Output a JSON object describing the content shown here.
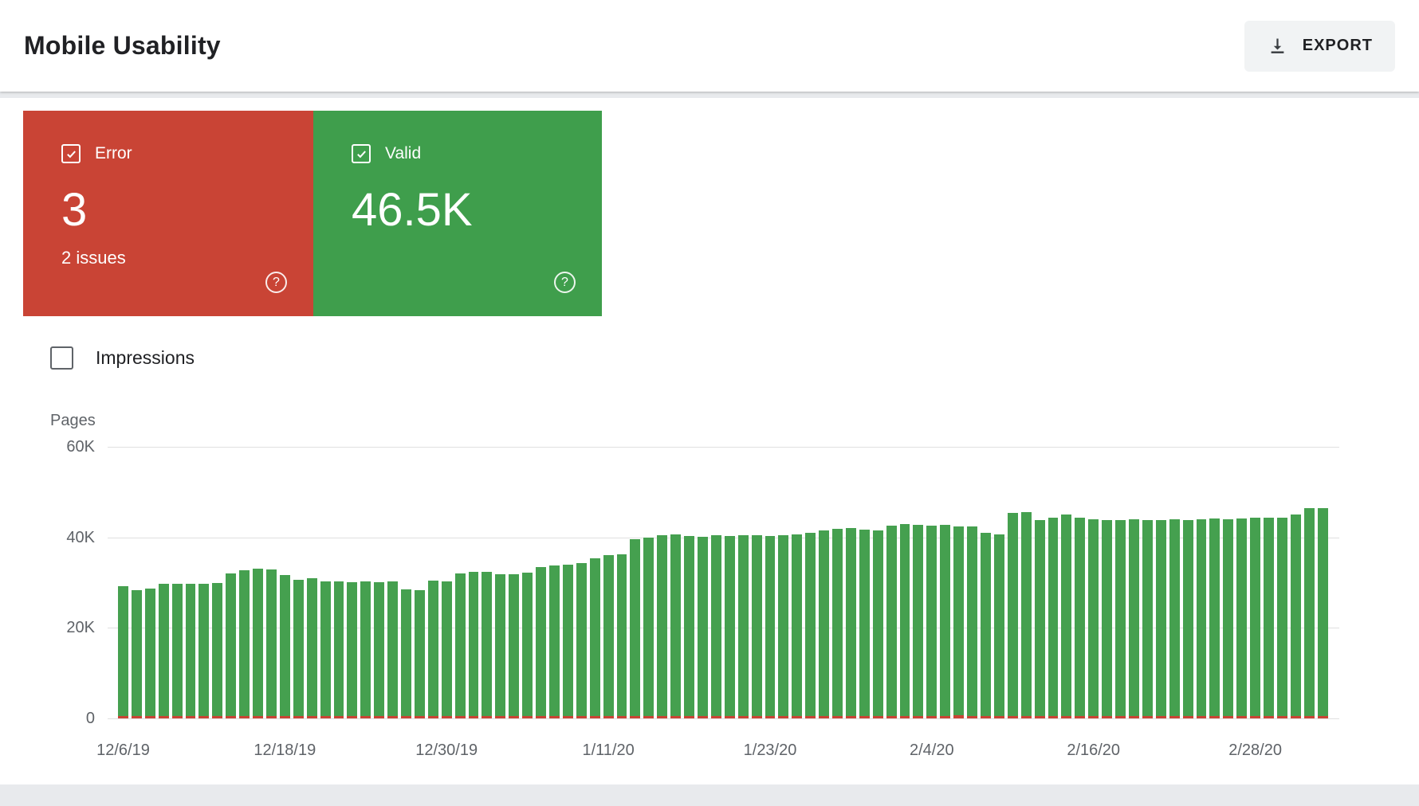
{
  "header": {
    "title": "Mobile Usability",
    "export_label": "EXPORT"
  },
  "summary": {
    "error": {
      "label": "Error",
      "count": "3",
      "subtext": "2 issues"
    },
    "valid": {
      "label": "Valid",
      "count": "46.5K"
    }
  },
  "controls": {
    "impressions_label": "Impressions"
  },
  "icons": {
    "help": "?"
  },
  "colors": {
    "error_tile": "#c94435",
    "valid_tile": "#3f9e4c",
    "bar_green": "#45a04f",
    "bar_red": "#c94435",
    "grid_line": "#e0e0e0",
    "axis_text": "#5f6368",
    "title_text": "#202124",
    "export_bg": "#f1f3f4",
    "page_bg": "#e8eaed",
    "card_bg": "#ffffff"
  },
  "chart_data": {
    "type": "bar",
    "title": "",
    "xlabel": "",
    "ylabel": "Pages",
    "ylim": [
      0,
      60000
    ],
    "grid": true,
    "legend_position": "none",
    "y_tick_labels": [
      "60K",
      "40K",
      "20K",
      "0"
    ],
    "x_tick_labels": [
      "12/6/19",
      "12/18/19",
      "12/30/19",
      "1/11/20",
      "1/23/20",
      "2/4/20",
      "2/16/20",
      "2/28/20"
    ],
    "x_tick_indices": [
      0,
      12,
      24,
      36,
      48,
      60,
      72,
      84
    ],
    "cadence": "daily",
    "series": [
      {
        "name": "Valid pages",
        "color": "#45a04f",
        "values": [
          29300,
          28400,
          28700,
          29800,
          29700,
          29800,
          29700,
          29900,
          32000,
          32800,
          33000,
          32900,
          31600,
          30700,
          30900,
          30300,
          30200,
          30100,
          30200,
          30100,
          30200,
          28600,
          28300,
          30400,
          30200,
          32100,
          32300,
          32300,
          31900,
          31800,
          32200,
          33400,
          33800,
          33900,
          34400,
          35300,
          36000,
          36200,
          39600,
          39900,
          40500,
          40600,
          40300,
          40200,
          40400,
          40300,
          40500,
          40400,
          40300,
          40500,
          40700,
          41000,
          41500,
          41800,
          42000,
          41700,
          41600,
          42600,
          42900,
          42800,
          42600,
          42700,
          42500,
          42400,
          41000,
          40700,
          45400,
          45600,
          43900,
          44300,
          45000,
          44400,
          44000,
          43800,
          43900,
          44000,
          43800,
          43900,
          44000,
          43900,
          44000,
          44100,
          44000,
          44200,
          44300,
          44400,
          44300,
          45000,
          46400,
          46500
        ]
      },
      {
        "name": "Error pages",
        "color": "#c94435",
        "values": [
          3,
          3,
          3,
          3,
          3,
          3,
          3,
          3,
          3,
          3,
          3,
          3,
          3,
          3,
          3,
          3,
          3,
          3,
          3,
          3,
          3,
          3,
          3,
          3,
          3,
          3,
          3,
          3,
          3,
          3,
          3,
          3,
          3,
          3,
          3,
          3,
          3,
          3,
          3,
          3,
          3,
          3,
          3,
          3,
          3,
          3,
          3,
          3,
          3,
          3,
          3,
          3,
          3,
          3,
          3,
          3,
          3,
          3,
          3,
          3,
          3,
          3,
          700,
          500,
          3,
          3,
          3,
          3,
          3,
          3,
          3,
          3,
          3,
          3,
          3,
          3,
          3,
          3,
          3,
          3,
          3,
          3,
          3,
          3,
          3,
          3,
          3,
          3,
          3,
          3
        ]
      }
    ]
  }
}
